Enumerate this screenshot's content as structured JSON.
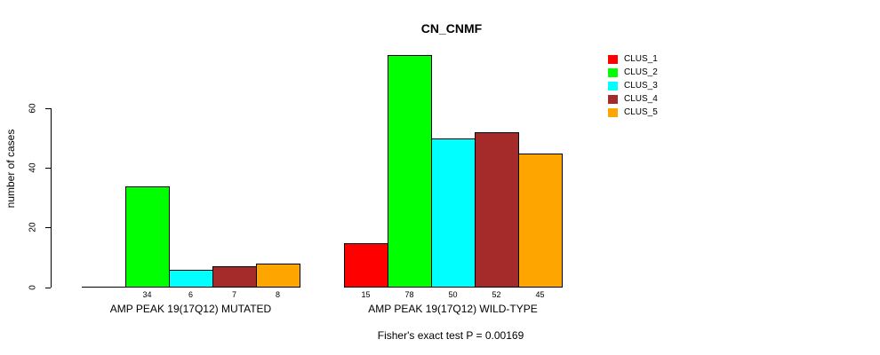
{
  "chart_data": {
    "type": "bar",
    "title": "CN_CNMF",
    "ylabel": "number of cases",
    "xlabel": "",
    "note": "Fisher's exact test P = 0.00169",
    "yticks": [
      0,
      20,
      40,
      60
    ],
    "ylim": [
      0,
      78
    ],
    "grid": false,
    "legend_position": "right",
    "series_names": [
      "CLUS_1",
      "CLUS_2",
      "CLUS_3",
      "CLUS_4",
      "CLUS_5"
    ],
    "series_colors": [
      "#FF0000",
      "#00FF00",
      "#00FFFF",
      "#A52A2A",
      "#FFA500"
    ],
    "categories": [
      "AMP PEAK 19(17Q12) MUTATED",
      "AMP PEAK 19(17Q12) WILD-TYPE"
    ],
    "groups": [
      {
        "label": "AMP PEAK 19(17Q12) MUTATED",
        "values": [
          0,
          34,
          6,
          7,
          8
        ],
        "bar_labels": [
          "",
          "34",
          "6",
          "7",
          "8"
        ]
      },
      {
        "label": "AMP PEAK 19(17Q12) WILD-TYPE",
        "values": [
          15,
          78,
          50,
          52,
          45
        ],
        "bar_labels": [
          "15",
          "78",
          "50",
          "52",
          "45"
        ]
      }
    ],
    "legend": [
      {
        "label": "CLUS_1",
        "color": "#FF0000"
      },
      {
        "label": "CLUS_2",
        "color": "#00FF00"
      },
      {
        "label": "CLUS_3",
        "color": "#00FFFF"
      },
      {
        "label": "CLUS_4",
        "color": "#A52A2A"
      },
      {
        "label": "CLUS_5",
        "color": "#FFA500"
      }
    ],
    "axis_color": "#000000",
    "background_color": "#FFFFFF"
  }
}
